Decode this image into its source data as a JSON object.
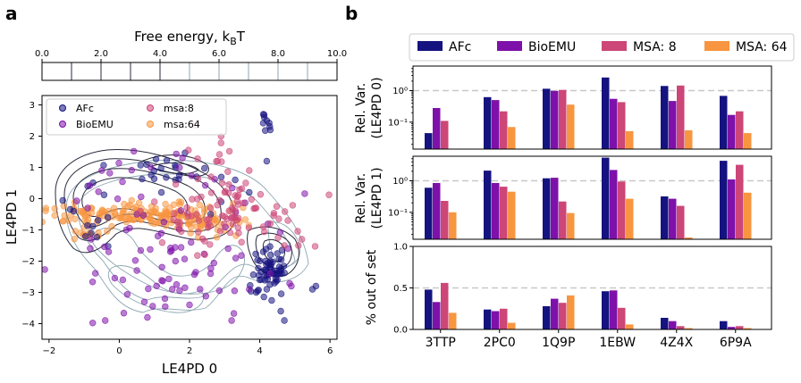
{
  "panel_labels": [
    "a",
    "b"
  ],
  "colors": {
    "afc": "#15137f",
    "bioemu": "#7e11a9",
    "msa8": "#cc4677",
    "msa64": "#f89540",
    "contour_dark": "#2a2b3c",
    "contour_light": "#8da6b2",
    "dashed": "#c8c8c8"
  },
  "chart_data": [
    {
      "type": "colorbar",
      "title": "Free energy, kBT",
      "title_main": "Free energy, k",
      "title_sub": "B",
      "title_tail": "T",
      "range": [
        0.0,
        10.0
      ],
      "ticks": [
        0.0,
        2.0,
        4.0,
        6.0,
        8.0,
        10.0
      ],
      "tick_labels": [
        "0.0",
        "2.0",
        "4.0",
        "6.0",
        "8.0",
        "10.0"
      ],
      "levels": [
        0,
        1,
        2,
        3,
        4,
        5,
        6,
        7,
        8,
        9,
        10
      ]
    },
    {
      "type": "scatter",
      "xlabel": "LE4PD 0",
      "ylabel": "LE4PD 1",
      "xlim": [
        -2.2,
        6.2
      ],
      "ylim": [
        -4.5,
        3.3
      ],
      "xticks": [
        -2,
        0,
        2,
        4,
        6
      ],
      "yticks": [
        -4,
        -3,
        -2,
        -1,
        0,
        1,
        2,
        3
      ],
      "legend": {
        "position": "top-left",
        "entries": [
          "AFc",
          "BioEMU",
          "msa:8",
          "msa:64"
        ]
      },
      "series": [
        {
          "name": "AFc",
          "color_key": "afc",
          "points_approx": [
            [
              4.1,
              2.7
            ],
            [
              4.2,
              2.5
            ],
            [
              4.3,
              2.2
            ],
            [
              4.2,
              1.2
            ],
            [
              3.7,
              0.2
            ],
            [
              4.1,
              -1.7
            ],
            [
              4.3,
              -2.0
            ],
            [
              4.6,
              -2.3
            ],
            [
              4.0,
              -2.6
            ],
            [
              4.5,
              -2.6
            ],
            [
              4.2,
              -2.9
            ],
            [
              3.9,
              -3.0
            ],
            [
              4.6,
              -3.6
            ],
            [
              4.7,
              -3.9
            ],
            [
              5.6,
              -2.8
            ],
            [
              5.5,
              -2.9
            ],
            [
              -0.9,
              0.4
            ],
            [
              -1.3,
              -0.4
            ],
            [
              -0.8,
              -1.1
            ],
            [
              1.2,
              0.2
            ],
            [
              1.6,
              0.6
            ],
            [
              2.2,
              0.7
            ],
            [
              1.6,
              1.0
            ],
            [
              2.6,
              -0.5
            ],
            [
              2.9,
              -0.1
            ],
            [
              3.3,
              0.6
            ]
          ]
        },
        {
          "name": "BioEMU",
          "color_key": "bioemu",
          "points_approx": [
            [
              -0.3,
              -1.7
            ],
            [
              0.5,
              -2.3
            ],
            [
              0.1,
              -2.6
            ],
            [
              1.6,
              -2.0
            ],
            [
              2.6,
              -2.4
            ],
            [
              -0.8,
              -1.3
            ],
            [
              0.5,
              -0.5
            ],
            [
              1.3,
              -3.2
            ],
            [
              0.8,
              -3.8
            ],
            [
              2.0,
              -3.4
            ],
            [
              3.2,
              -3.9
            ],
            [
              -0.4,
              -3.9
            ],
            [
              3.7,
              -2.9
            ],
            [
              4.3,
              -2.4
            ],
            [
              4.8,
              -1.6
            ],
            [
              -0.9,
              -0.3
            ],
            [
              2.3,
              -2.9
            ],
            [
              0.9,
              1.0
            ],
            [
              1.8,
              1.3
            ],
            [
              -0.5,
              0.9
            ],
            [
              3.1,
              -1.6
            ],
            [
              1.1,
              -1.2
            ],
            [
              0.2,
              -1.0
            ],
            [
              4.9,
              -2.8
            ]
          ]
        },
        {
          "name": "msa:8",
          "color_key": "msa8",
          "points_approx": [
            [
              1.7,
              -0.9
            ],
            [
              2.2,
              -0.5
            ],
            [
              2.6,
              -0.3
            ],
            [
              3.3,
              -0.6
            ],
            [
              3.9,
              -0.3
            ],
            [
              4.3,
              -0.8
            ],
            [
              4.7,
              -1.5
            ],
            [
              5.1,
              -1.5
            ],
            [
              5.2,
              -1.3
            ],
            [
              3.6,
              0.5
            ],
            [
              2.8,
              1.2
            ],
            [
              2.9,
              2.0
            ],
            [
              3.7,
              0.9
            ],
            [
              3.0,
              0.2
            ],
            [
              1.0,
              -0.1
            ],
            [
              0.6,
              -0.4
            ],
            [
              4.1,
              -0.9
            ],
            [
              3.4,
              -1.1
            ],
            [
              3.3,
              0.1
            ],
            [
              4.8,
              -0.7
            ]
          ]
        },
        {
          "name": "msa:64",
          "color_key": "msa64",
          "points_approx": [
            [
              -1.3,
              -0.3
            ],
            [
              -0.8,
              -0.3
            ],
            [
              -0.3,
              -0.4
            ],
            [
              0.1,
              -0.4
            ],
            [
              0.6,
              -0.4
            ],
            [
              1.0,
              -0.4
            ],
            [
              1.4,
              -0.5
            ],
            [
              1.8,
              -0.5
            ],
            [
              2.3,
              -0.8
            ],
            [
              2.8,
              -1.0
            ],
            [
              -1.1,
              -1.1
            ],
            [
              -0.6,
              -1.2
            ],
            [
              1.0,
              -0.8
            ],
            [
              1.7,
              -0.1
            ],
            [
              0.3,
              -0.2
            ],
            [
              2.6,
              -0.6
            ]
          ]
        }
      ]
    },
    {
      "type": "bar",
      "categories": [
        "3TTP",
        "2PC0",
        "1Q9P",
        "1EBW",
        "4Z4X",
        "6P9A"
      ],
      "legend": {
        "position": "top",
        "entries": [
          "AFc",
          "BioEMU",
          "MSA: 8",
          "MSA: 64"
        ]
      },
      "subplots": [
        {
          "ylabel_lines": [
            "Rel. Var.",
            "(LE4PD 0)"
          ],
          "yscale": "log",
          "ylim": [
            0.014,
            6.0
          ],
          "yticks": [
            0.1,
            1
          ],
          "ytick_labels": [
            "10⁻¹",
            "10⁰"
          ],
          "reference_line": 1.0,
          "series": [
            {
              "name": "AFc",
              "values": [
                0.045,
                0.62,
                1.15,
                2.6,
                1.4,
                0.68
              ]
            },
            {
              "name": "BioEMU",
              "values": [
                0.28,
                0.5,
                0.98,
                0.55,
                0.47,
                0.17
              ]
            },
            {
              "name": "MSA: 8",
              "values": [
                0.11,
                0.22,
                1.05,
                0.43,
                1.45,
                0.22
              ]
            },
            {
              "name": "MSA: 64",
              "values": [
                null,
                0.07,
                0.36,
                0.052,
                0.055,
                0.045
              ]
            }
          ]
        },
        {
          "ylabel_lines": [
            "Rel. Var.",
            "(LE4PD 1)"
          ],
          "yscale": "log",
          "ylim": [
            0.014,
            6.0
          ],
          "yticks": [
            0.1,
            1
          ],
          "ytick_labels": [
            "10⁻¹",
            "10⁰"
          ],
          "reference_line": 1.0,
          "series": [
            {
              "name": "AFc",
              "values": [
                0.6,
                2.1,
                1.2,
                5.4,
                0.32,
                4.3
              ]
            },
            {
              "name": "BioEMU",
              "values": [
                0.85,
                0.85,
                1.25,
                2.2,
                0.27,
                1.1
              ]
            },
            {
              "name": "MSA: 8",
              "values": [
                0.23,
                0.65,
                0.22,
                0.95,
                0.16,
                3.2
              ]
            },
            {
              "name": "MSA: 64",
              "values": [
                0.1,
                0.45,
                0.095,
                0.27,
                0.016,
                0.42
              ]
            }
          ]
        },
        {
          "ylabel_lines": [
            "% out of set"
          ],
          "yscale": "linear",
          "ylim": [
            0.0,
            1.0
          ],
          "yticks": [
            0.0,
            0.5,
            1.0
          ],
          "ytick_labels": [
            "0.0",
            "0.5",
            "1.0"
          ],
          "reference_line": 0.5,
          "series": [
            {
              "name": "AFc",
              "values": [
                0.48,
                0.24,
                0.28,
                0.46,
                0.14,
                0.1
              ]
            },
            {
              "name": "BioEMU",
              "values": [
                0.33,
                0.22,
                0.37,
                0.47,
                0.1,
                0.03
              ]
            },
            {
              "name": "MSA: 8",
              "values": [
                0.56,
                0.25,
                0.32,
                0.26,
                0.04,
                0.04
              ]
            },
            {
              "name": "MSA: 64",
              "values": [
                0.2,
                0.08,
                0.41,
                0.06,
                0.0,
                0.0
              ]
            }
          ]
        }
      ]
    }
  ]
}
